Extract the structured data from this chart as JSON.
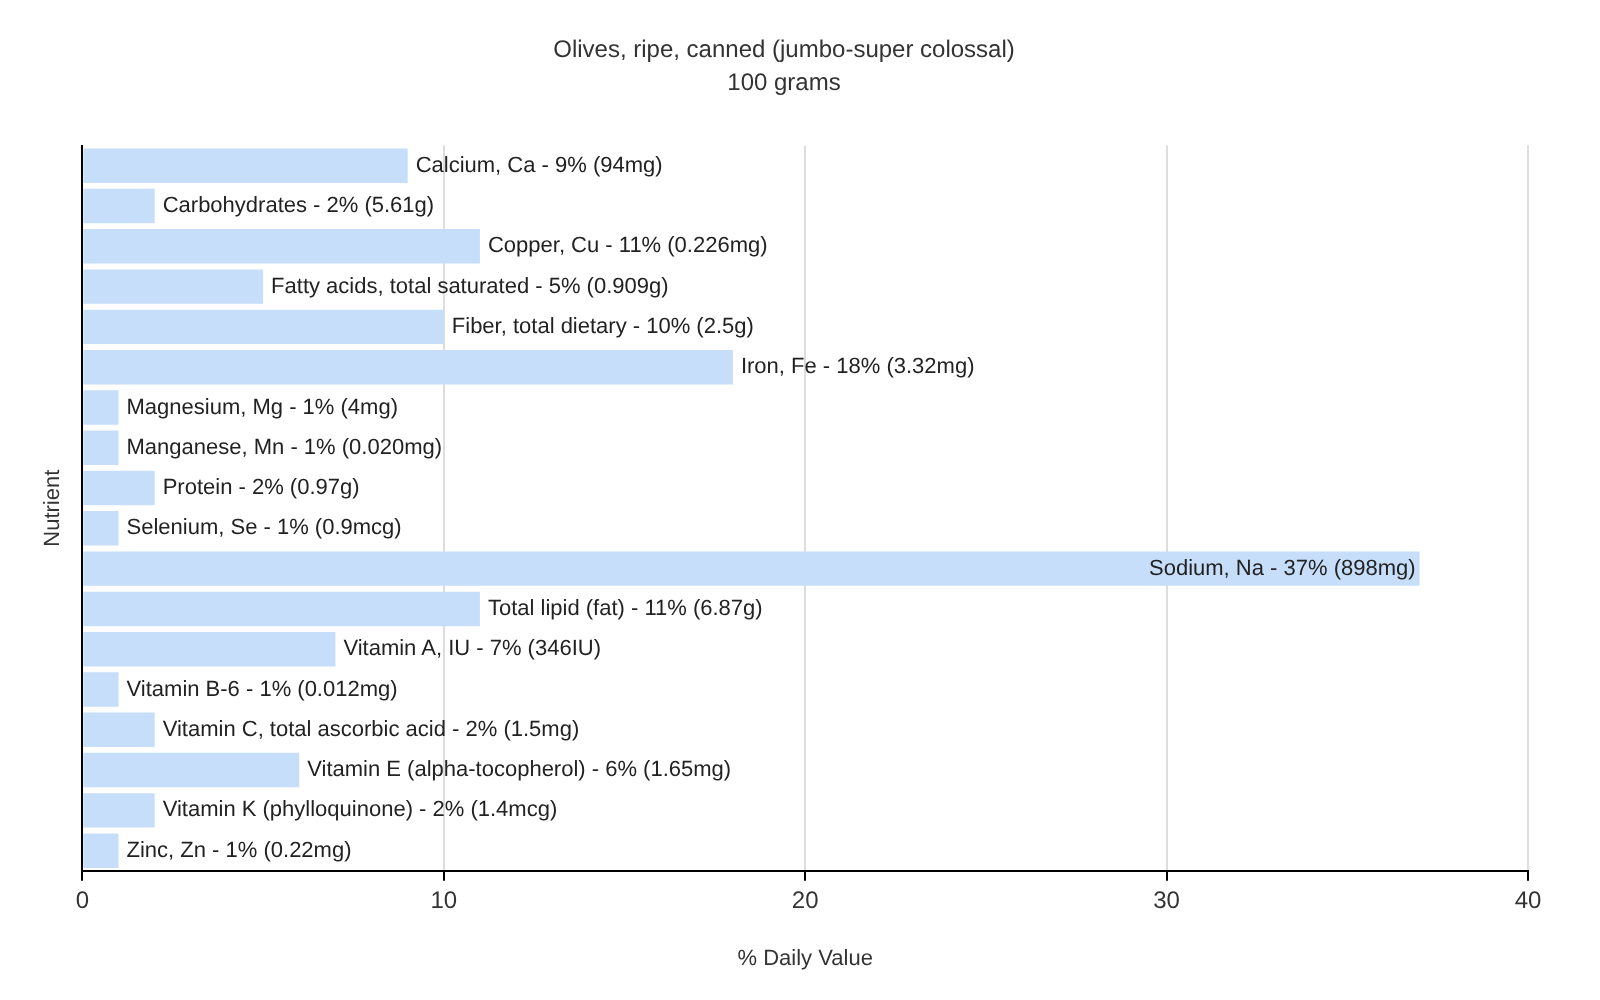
{
  "chart_data": {
    "type": "bar",
    "orientation": "horizontal",
    "title": "Olives, ripe, canned (jumbo-super colossal)",
    "subtitle": "100 grams",
    "xlabel": "% Daily Value",
    "ylabel": "Nutrient",
    "categories": [
      "Calcium, Ca - 9% (94mg)",
      "Carbohydrates - 2% (5.61g)",
      "Copper, Cu - 11% (0.226mg)",
      "Fatty acids, total saturated - 5% (0.909g)",
      "Fiber, total dietary - 10% (2.5g)",
      "Iron, Fe - 18% (3.32mg)",
      "Magnesium, Mg - 1% (4mg)",
      "Manganese, Mn - 1% (0.020mg)",
      "Protein - 2% (0.97g)",
      "Selenium, Se - 1% (0.9mcg)",
      "Sodium, Na - 37% (898mg)",
      "Total lipid (fat) - 11% (6.87g)",
      "Vitamin A, IU - 7% (346IU)",
      "Vitamin B-6 - 1% (0.012mg)",
      "Vitamin C, total ascorbic acid - 2% (1.5mg)",
      "Vitamin E (alpha-tocopherol) - 6% (1.65mg)",
      "Vitamin K (phylloquinone) - 2% (1.4mcg)",
      "Zinc, Zn - 1% (0.22mg)"
    ],
    "values": [
      9,
      2,
      11,
      5,
      10,
      18,
      1,
      1,
      2,
      1,
      37,
      11,
      7,
      1,
      2,
      6,
      2,
      1
    ],
    "color": "#c6defa",
    "xlim": [
      0,
      40
    ],
    "xticks": [
      0,
      10,
      20,
      30,
      40
    ],
    "grid": "x",
    "tick_labels": "x",
    "legend": false
  }
}
